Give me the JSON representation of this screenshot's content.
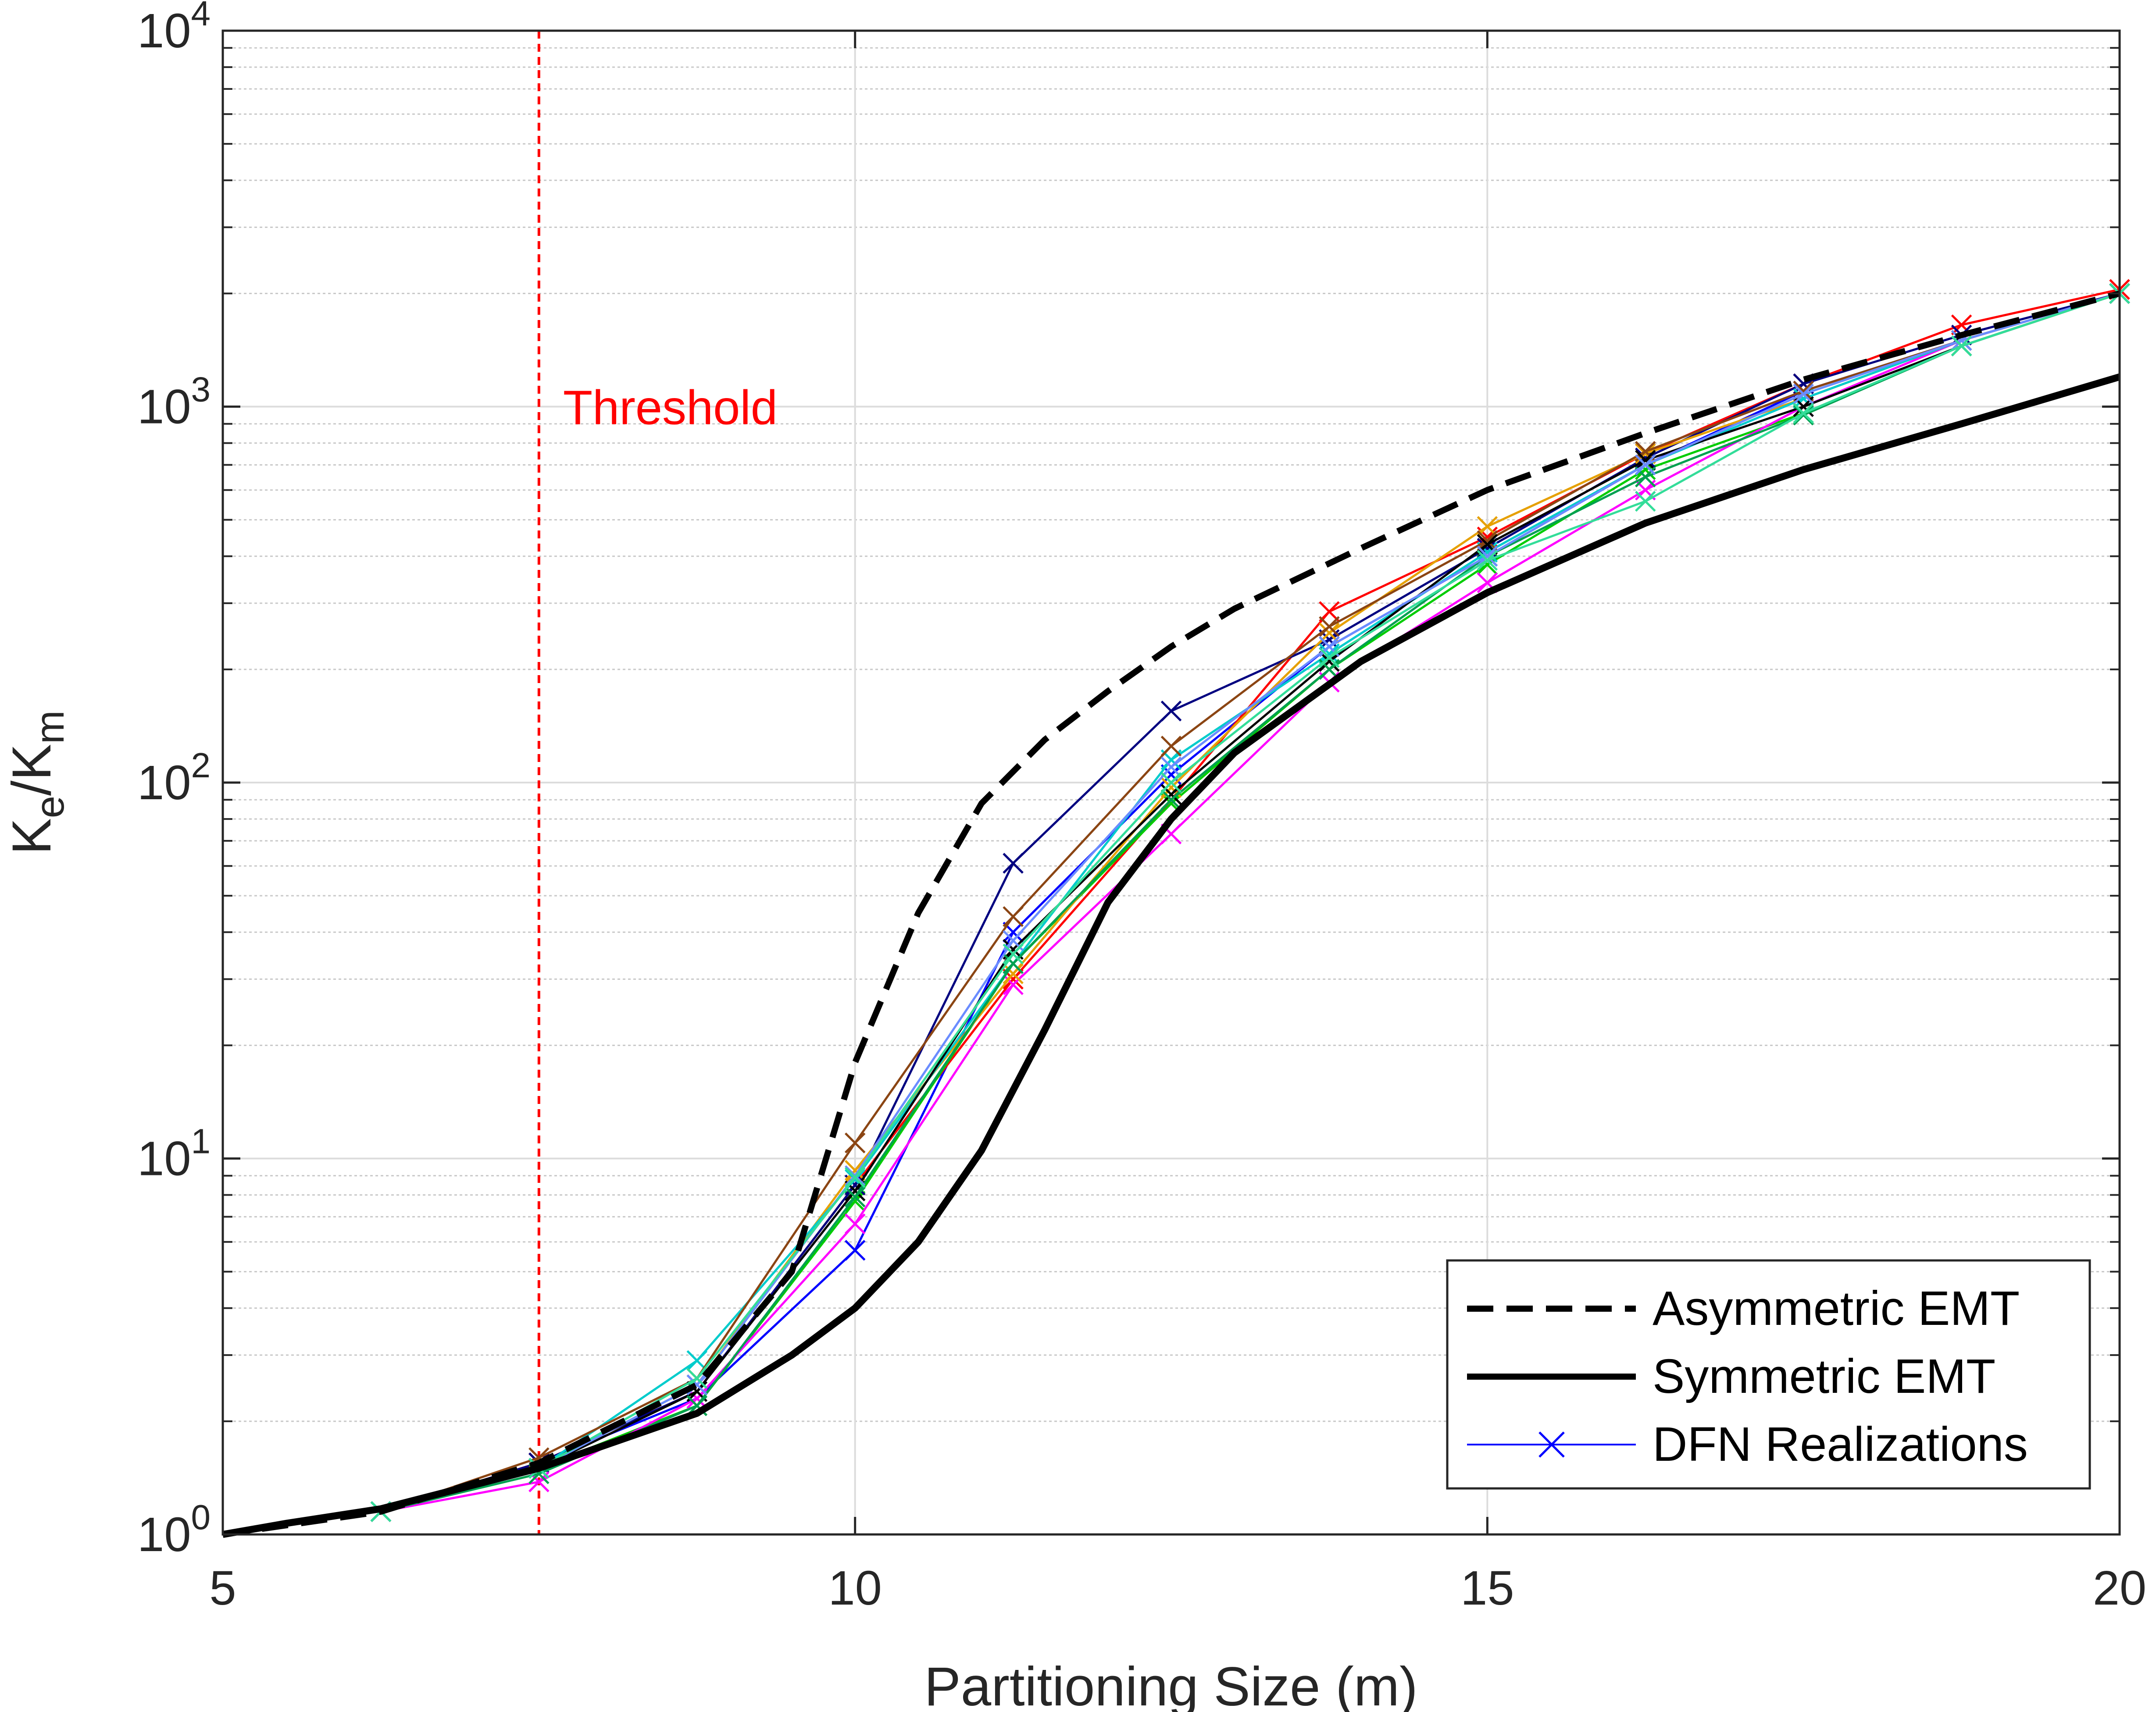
{
  "chart_data": {
    "type": "line",
    "title": "",
    "xlabel": "Partitioning Size (m)",
    "ylabel": {
      "main": "K",
      "sub1": "e",
      "sep": "/K",
      "sub2": "m"
    },
    "x_scale": "linear",
    "y_scale": "log",
    "xlim": [
      5,
      20
    ],
    "ylim": [
      1,
      10000
    ],
    "x_ticks": [
      5,
      10,
      15,
      20
    ],
    "x_tick_labels": [
      "5",
      "10",
      "15",
      "20"
    ],
    "y_ticks": [
      1,
      10,
      100,
      1000,
      10000
    ],
    "y_tick_labels": [
      {
        "base": "10",
        "exp": "0"
      },
      {
        "base": "10",
        "exp": "1"
      },
      {
        "base": "10",
        "exp": "2"
      },
      {
        "base": "10",
        "exp": "3"
      },
      {
        "base": "10",
        "exp": "4"
      }
    ],
    "grid": true,
    "minor_grid": true,
    "legend_position": "bottom-right",
    "annotation": {
      "text": "Threshold",
      "x": 7.5,
      "color": "#ff0000"
    },
    "series": [
      {
        "name": "Asymmetric EMT",
        "style": "dashed",
        "color": "#000000",
        "x": [
          5,
          6.25,
          7.5,
          8.75,
          9.5,
          10,
          10.5,
          11,
          11.5,
          12,
          12.5,
          13,
          14,
          15,
          16.25,
          17.5,
          18.75,
          20
        ],
        "y": [
          1,
          1.15,
          1.55,
          2.5,
          5.0,
          18,
          45,
          88,
          130,
          175,
          230,
          290,
          420,
          600,
          850,
          1180,
          1550,
          2000
        ]
      },
      {
        "name": "Symmetric EMT",
        "style": "solid-thick",
        "color": "#000000",
        "x": [
          5,
          5.5,
          6.25,
          7.5,
          8.75,
          9.5,
          10,
          10.5,
          11,
          11.5,
          12,
          12.5,
          13,
          14,
          15,
          16.25,
          17.5,
          18.75,
          20
        ],
        "y": [
          1,
          1.07,
          1.17,
          1.5,
          2.1,
          3.0,
          4.0,
          6.0,
          10.5,
          22,
          48,
          80,
          120,
          210,
          320,
          490,
          680,
          900,
          1200
        ]
      },
      {
        "name": "DFN Realizations",
        "style": "marker-x",
        "x": [
          6.25,
          7.5,
          8.75,
          10,
          11.25,
          12.5,
          13.75,
          15,
          16.25,
          17.5,
          18.75,
          20
        ],
        "realizations": [
          {
            "color": "#0000ff",
            "y": [
              1.15,
              1.55,
              2.3,
              5.7,
              40,
              105,
              230,
              400,
              700,
              1100,
              1500,
              2000
            ]
          },
          {
            "color": "#ff0000",
            "y": [
              1.15,
              1.55,
              2.4,
              8.5,
              30,
              90,
              285,
              450,
              750,
              1150,
              1650,
              2050
            ]
          },
          {
            "color": "#00cc00",
            "y": [
              1.15,
              1.5,
              2.2,
              7.7,
              33,
              88,
              200,
              380,
              680,
              960,
              1450,
              2000
            ]
          },
          {
            "color": "#000080",
            "y": [
              1.15,
              1.55,
              2.4,
              8.5,
              61,
              155,
              240,
              420,
              730,
              1150,
              1550,
              2000
            ]
          },
          {
            "color": "#ff00ff",
            "y": [
              1.15,
              1.38,
              2.3,
              6.7,
              29,
              73,
              185,
              340,
              600,
              1000,
              1500,
              2000
            ]
          },
          {
            "color": "#e6a000",
            "y": [
              1.15,
              1.5,
              2.5,
              9.3,
              31,
              97,
              250,
              480,
              750,
              1050,
              1500,
              2000
            ]
          },
          {
            "color": "#00cccc",
            "y": [
              1.15,
              1.5,
              2.9,
              8.8,
              33,
              115,
              220,
              410,
              700,
              1050,
              1500,
              2000
            ]
          },
          {
            "color": "#8b4513",
            "y": [
              1.15,
              1.6,
              2.6,
              11,
              44,
              125,
              260,
              440,
              760,
              1100,
              1500,
              2000
            ]
          },
          {
            "color": "#000000",
            "y": [
              1.15,
              1.5,
              2.4,
              8.2,
              36,
              93,
              210,
              430,
              720,
              1000,
              1450,
              2000
            ]
          },
          {
            "color": "#00a050",
            "y": [
              1.15,
              1.45,
              2.2,
              7.9,
              33,
              90,
              200,
              400,
              650,
              950,
              1450,
              2000
            ]
          },
          {
            "color": "#6a8cff",
            "y": [
              1.15,
              1.5,
              2.5,
              9.0,
              38,
              110,
              230,
              400,
              700,
              1080,
              1500,
              2000
            ]
          },
          {
            "color": "#33dd99",
            "y": [
              1.15,
              1.5,
              2.6,
              8.9,
              35,
              100,
              215,
              390,
              560,
              960,
              1450,
              2000
            ]
          }
        ]
      }
    ]
  }
}
